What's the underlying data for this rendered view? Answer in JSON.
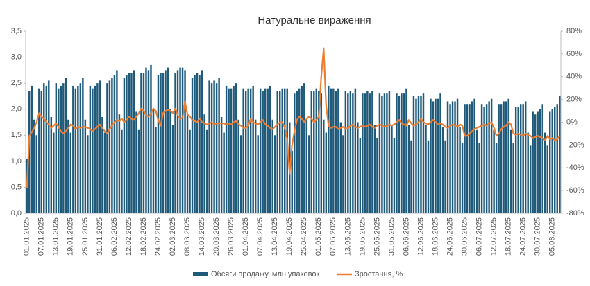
{
  "chart_data": {
    "type": "bar_line",
    "title": "Натуральне вираження",
    "categories": [
      "01.01.2025",
      null,
      null,
      null,
      null,
      null,
      "07.01.2025",
      null,
      null,
      null,
      null,
      null,
      "13.01.2025",
      null,
      null,
      null,
      null,
      null,
      "19.01.2025",
      null,
      null,
      null,
      null,
      null,
      "25.01.2025",
      null,
      null,
      null,
      null,
      null,
      "31.01.2025",
      null,
      null,
      null,
      null,
      null,
      "06.02.2025",
      null,
      null,
      null,
      null,
      null,
      "12.02.2025",
      null,
      null,
      null,
      null,
      null,
      "18.02.2025",
      null,
      null,
      null,
      null,
      null,
      "24.02.2025",
      null,
      null,
      null,
      null,
      null,
      "02.03.2025",
      null,
      null,
      null,
      null,
      null,
      "08.03.2025",
      null,
      null,
      null,
      null,
      null,
      "14.03.2025",
      null,
      null,
      null,
      null,
      null,
      "20.03.2025",
      null,
      null,
      null,
      null,
      null,
      "26.03.2025",
      null,
      null,
      null,
      null,
      null,
      "01.04.2025",
      null,
      null,
      null,
      null,
      null,
      "07.04.2025",
      null,
      null,
      null,
      null,
      null,
      "13.04.2025",
      null,
      null,
      null,
      null,
      null,
      "19.04.2025",
      null,
      null,
      null,
      null,
      null,
      "25.04.2025",
      null,
      null,
      null,
      null,
      null,
      "01.05.2025",
      null,
      null,
      null,
      null,
      null,
      "07.05.2025",
      null,
      null,
      null,
      null,
      null,
      "13.05.2025",
      null,
      null,
      null,
      null,
      null,
      "19.05.2025",
      null,
      null,
      null,
      null,
      null,
      "25.05.2025",
      null,
      null,
      null,
      null,
      null,
      "31.05.2025",
      null,
      null,
      null,
      null,
      null,
      "06.06.2025",
      null,
      null,
      null,
      null,
      null,
      "12.06.2025",
      null,
      null,
      null,
      null,
      null,
      "18.06.2025",
      null,
      null,
      null,
      null,
      null,
      "24.06.2025",
      null,
      null,
      null,
      null,
      null,
      "30.06.2025",
      null,
      null,
      null,
      null,
      null,
      "06.07.2025",
      null,
      null,
      null,
      null,
      null,
      "12.07.2025",
      null,
      null,
      null,
      null,
      null,
      "18.07.2025",
      null,
      null,
      null,
      null,
      null,
      "24.07.2025",
      null,
      null,
      null,
      null,
      null,
      "30.07.2025",
      null,
      null,
      null,
      null,
      null,
      "05.08.2025",
      null,
      null,
      null
    ],
    "series": [
      {
        "name": "Обсяги продажу, млн упаковок",
        "color": "#1f5a7a",
        "type": "bar",
        "values": [
          1.05,
          2.35,
          2.45,
          1.8,
          1.5,
          2.4,
          2.35,
          2.5,
          2.45,
          2.55,
          1.85,
          1.55,
          2.5,
          2.4,
          2.45,
          2.5,
          2.6,
          1.8,
          1.55,
          2.45,
          2.4,
          2.45,
          2.5,
          2.6,
          1.8,
          1.5,
          2.45,
          2.4,
          2.45,
          2.5,
          2.55,
          1.85,
          1.55,
          2.5,
          2.55,
          2.6,
          2.65,
          2.75,
          1.9,
          1.6,
          2.6,
          2.65,
          2.7,
          2.7,
          2.75,
          1.95,
          1.6,
          2.7,
          2.7,
          2.8,
          2.75,
          2.85,
          2.0,
          1.65,
          2.65,
          2.7,
          2.7,
          2.75,
          2.8,
          2.0,
          1.7,
          2.7,
          2.75,
          2.8,
          2.8,
          2.75,
          1.9,
          1.6,
          2.6,
          2.65,
          2.7,
          2.65,
          2.75,
          1.9,
          1.6,
          2.55,
          2.5,
          2.55,
          2.5,
          2.6,
          1.85,
          1.55,
          2.45,
          2.4,
          2.4,
          2.45,
          2.5,
          1.8,
          1.5,
          2.4,
          2.35,
          2.4,
          2.4,
          2.45,
          1.8,
          1.5,
          2.4,
          2.35,
          2.4,
          2.4,
          2.45,
          1.8,
          1.5,
          2.35,
          2.35,
          2.4,
          2.4,
          2.4,
          1.75,
          1.2,
          2.3,
          2.35,
          2.4,
          2.45,
          2.5,
          1.8,
          1.5,
          2.35,
          2.35,
          2.4,
          2.35,
          2.3,
          1.8,
          1.55,
          2.45,
          2.4,
          2.4,
          2.35,
          2.4,
          1.75,
          1.5,
          2.35,
          2.3,
          2.35,
          2.3,
          2.4,
          1.75,
          1.45,
          2.3,
          2.3,
          2.35,
          2.3,
          2.35,
          1.7,
          1.45,
          2.3,
          2.25,
          2.3,
          2.3,
          2.35,
          1.7,
          1.45,
          2.3,
          2.25,
          2.3,
          2.3,
          2.4,
          1.7,
          1.4,
          2.25,
          2.2,
          2.25,
          2.25,
          2.3,
          1.7,
          1.4,
          2.2,
          2.15,
          2.2,
          2.2,
          2.3,
          1.65,
          1.4,
          2.15,
          2.1,
          2.15,
          2.15,
          2.2,
          1.65,
          1.35,
          2.1,
          2.1,
          2.1,
          2.15,
          2.2,
          1.6,
          1.35,
          2.1,
          2.05,
          2.1,
          2.15,
          2.2,
          1.6,
          1.35,
          2.1,
          2.1,
          2.15,
          2.15,
          2.2,
          1.6,
          1.35,
          2.05,
          2.05,
          2.1,
          2.1,
          2.15,
          1.55,
          1.3,
          1.95,
          1.9,
          1.95,
          2.0,
          2.1,
          1.55,
          1.3,
          1.95,
          2.0,
          2.05,
          2.1,
          2.25
        ]
      },
      {
        "name": "Зростання, %",
        "color": "#ed7d31",
        "type": "line",
        "axis": "y2",
        "values": [
          -58,
          -12,
          -9,
          -5,
          0,
          8,
          5,
          3,
          0,
          -2,
          -5,
          -3,
          -1,
          -4,
          -8,
          -10,
          -8,
          -5,
          -2,
          -3,
          -6,
          -4,
          -5,
          -4,
          -4,
          -5,
          -6,
          -8,
          -6,
          -4,
          -2,
          -5,
          -8,
          -10,
          -6,
          -3,
          0,
          2,
          1,
          3,
          0,
          2,
          5,
          3,
          2,
          5,
          8,
          12,
          10,
          6,
          5,
          8,
          12,
          10,
          2,
          -3,
          8,
          10,
          11,
          10,
          8,
          12,
          6,
          3,
          4,
          18,
          7,
          5,
          2,
          1,
          0,
          3,
          0,
          -1,
          -2,
          -1,
          0,
          -2,
          -1,
          -1,
          -1,
          -1,
          -2,
          -1,
          -2,
          0,
          1,
          -2,
          -3,
          -5,
          -5,
          -3,
          3,
          0,
          -1,
          -2,
          0,
          2,
          -2,
          -3,
          -5,
          -6,
          -4,
          -2,
          0,
          0,
          -5,
          -15,
          -45,
          -20,
          -8,
          2,
          5,
          3,
          0,
          3,
          5,
          3,
          0,
          2,
          5,
          40,
          65,
          15,
          -3,
          -5,
          -4,
          -4,
          -6,
          -5,
          -4,
          -6,
          -5,
          -3,
          -2,
          -4,
          -5,
          -4,
          -3,
          -4,
          -3,
          -2,
          -4,
          -5,
          -3,
          -2,
          -3,
          -4,
          -3,
          -2,
          -3,
          -2,
          0,
          2,
          -1,
          -2,
          -3,
          2,
          -1,
          -3,
          -2,
          0,
          3,
          0,
          -1,
          -2,
          0,
          2,
          0,
          -2,
          -1,
          -2,
          -4,
          -5,
          -3,
          -2,
          -3,
          -4,
          -2,
          -3,
          -12,
          -12,
          -10,
          -8,
          -6,
          -5,
          -4,
          -3,
          -2,
          -3,
          -1,
          0,
          -5,
          -12,
          -10,
          -6,
          -4,
          -3,
          0,
          -2,
          -10,
          -11,
          -10,
          -11,
          -12,
          -10,
          -11,
          -12,
          -14,
          -13,
          -12,
          -13,
          -14,
          -16,
          -12,
          -15,
          -14,
          -16,
          -15,
          -12
        ]
      }
    ],
    "ylim": [
      0,
      3.5
    ],
    "yticks": [
      {
        "value": 0,
        "label": "0,0"
      },
      {
        "value": 0.5,
        "label": "0,5"
      },
      {
        "value": 1,
        "label": "1,0"
      },
      {
        "value": 1.5,
        "label": "1,5"
      },
      {
        "value": 2,
        "label": "2,0"
      },
      {
        "value": 2.5,
        "label": "2,5"
      },
      {
        "value": 3,
        "label": "3,0"
      },
      {
        "value": 3.5,
        "label": "3,5"
      }
    ],
    "y2lim": [
      -80,
      80
    ],
    "y2ticks": [
      {
        "value": -80,
        "label": "-80%"
      },
      {
        "value": -60,
        "label": "-60%"
      },
      {
        "value": -40,
        "label": "-40%"
      },
      {
        "value": -20,
        "label": "-20%"
      },
      {
        "value": 0,
        "label": "0%"
      },
      {
        "value": 20,
        "label": "20%"
      },
      {
        "value": 40,
        "label": "40%"
      },
      {
        "value": 60,
        "label": "60%"
      },
      {
        "value": 80,
        "label": "80%"
      }
    ],
    "grid": false,
    "legend": "bottom"
  }
}
